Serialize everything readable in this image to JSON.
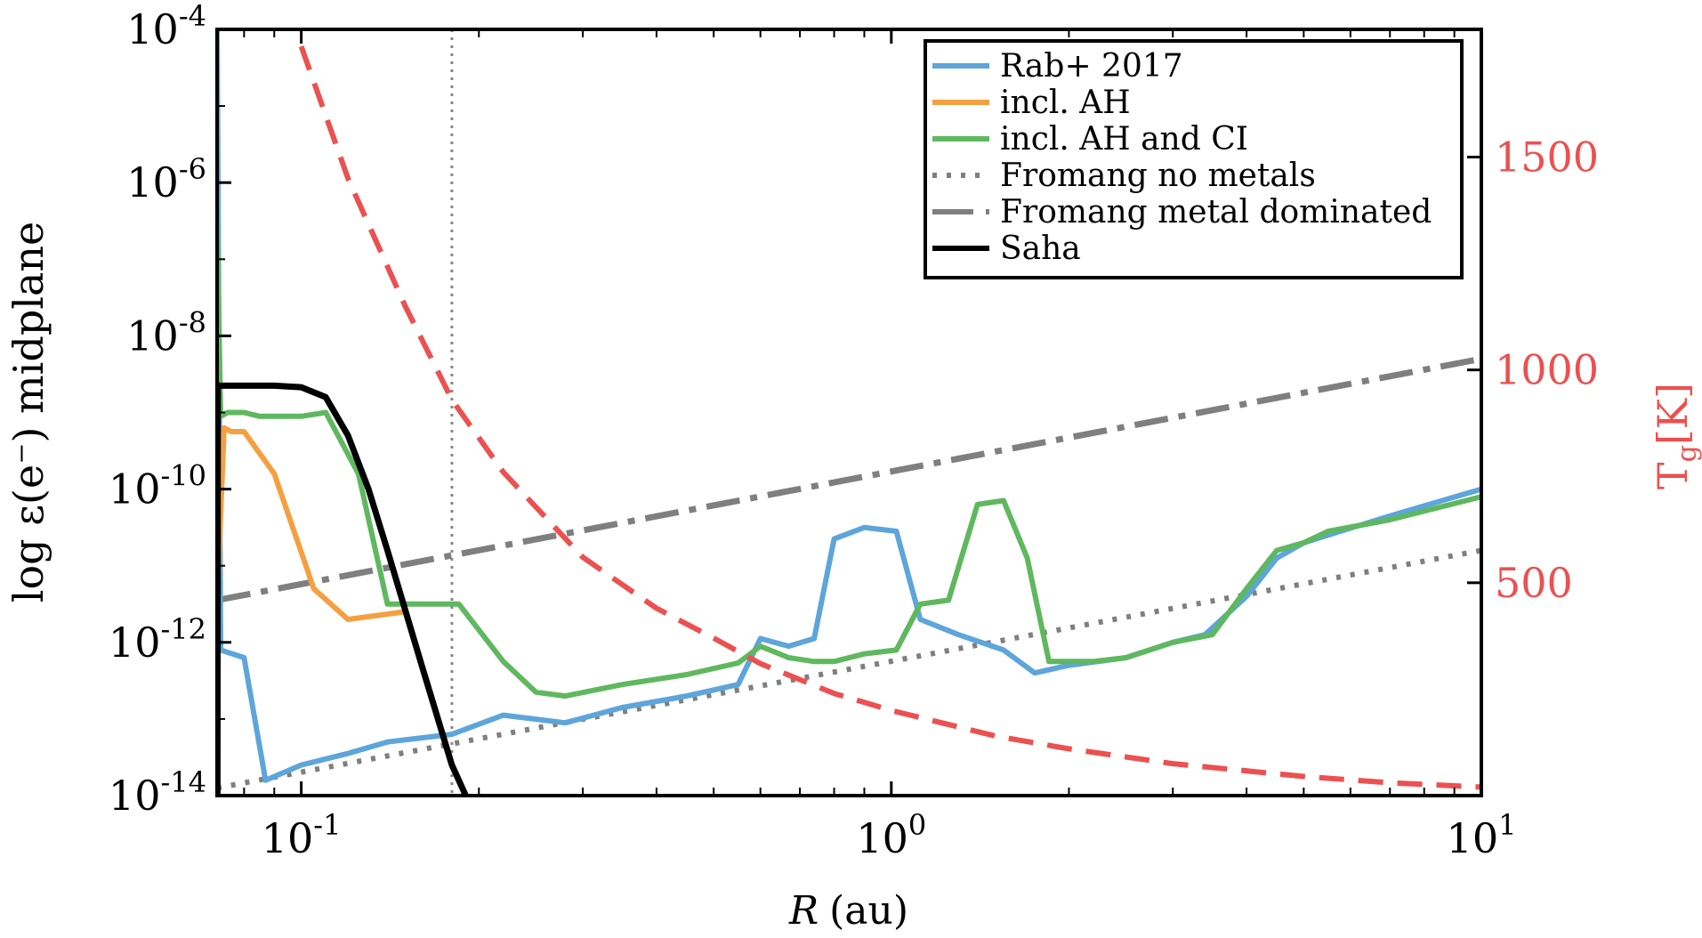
{
  "chart_data": {
    "type": "line",
    "title": "",
    "xlabel": "(au)",
    "xlabel_var": "R",
    "ylabel": "log ε(e⁻) midplane",
    "y2label": "T_g [K]",
    "y2label_main": "T",
    "y2label_sub": "g",
    "y2label_unit": "[K]",
    "xscale": "log",
    "xlim": [
      0.072,
      10
    ],
    "ylim_log10": [
      -14,
      -4
    ],
    "y2lim": [
      0,
      1800
    ],
    "x_ticks": [
      {
        "value": 0.1,
        "base": "10",
        "exp": "-1"
      },
      {
        "value": 1,
        "base": "10",
        "exp": "0"
      },
      {
        "value": 10,
        "base": "10",
        "exp": "1"
      }
    ],
    "y_ticks": [
      {
        "value": -14,
        "base": "10",
        "exp": "-14"
      },
      {
        "value": -12,
        "base": "10",
        "exp": "-12"
      },
      {
        "value": -10,
        "base": "10",
        "exp": "-10"
      },
      {
        "value": -8,
        "base": "10",
        "exp": "-8"
      },
      {
        "value": -6,
        "base": "10",
        "exp": "-6"
      },
      {
        "value": -4,
        "base": "10",
        "exp": "-4"
      }
    ],
    "y2_ticks": [
      {
        "value": 500,
        "label": "500"
      },
      {
        "value": 1000,
        "label": "1000"
      },
      {
        "value": 1500,
        "label": "1500"
      }
    ],
    "vline_x": 0.18,
    "colors": {
      "rab": "#5DA5DA",
      "ah": "#F5A040",
      "ahci": "#5FB85F",
      "fromang": "#7F7F7F",
      "saha": "#000000",
      "temp": "#EC5050",
      "vline": "#888888"
    },
    "legend": {
      "position": "top-right",
      "entries": [
        {
          "key": "rab",
          "label": "Rab+ 2017",
          "style": "solid"
        },
        {
          "key": "ah",
          "label": "incl. AH",
          "style": "solid"
        },
        {
          "key": "ahci",
          "label": "incl. AH and CI",
          "style": "solid"
        },
        {
          "key": "fromang_no",
          "label": "Fromang no metals",
          "style": "dotted"
        },
        {
          "key": "fromang_metal",
          "label": "Fromang metal dominated",
          "style": "dashdot"
        },
        {
          "key": "saha",
          "label": "Saha",
          "style": "solid"
        }
      ]
    },
    "series": [
      {
        "key": "rab",
        "name": "Rab+ 2017",
        "axis": "left",
        "log10_y": true,
        "x": [
          0.072,
          0.073,
          0.08,
          0.087,
          0.1,
          0.12,
          0.14,
          0.18,
          0.22,
          0.28,
          0.35,
          0.45,
          0.55,
          0.6,
          0.67,
          0.74,
          0.8,
          0.9,
          1.02,
          1.12,
          1.3,
          1.55,
          1.75,
          2.0,
          2.5,
          3.0,
          3.4,
          4.0,
          4.5,
          5.0,
          5.5,
          7.0,
          10.0
        ],
        "y": [
          -4,
          -12.1,
          -12.2,
          -13.8,
          -13.6,
          -13.45,
          -13.3,
          -13.2,
          -12.95,
          -13.05,
          -12.85,
          -12.7,
          -12.55,
          -11.95,
          -12.05,
          -11.95,
          -10.65,
          -10.5,
          -10.55,
          -11.7,
          -11.9,
          -12.1,
          -12.4,
          -12.3,
          -12.2,
          -12.0,
          -11.9,
          -11.4,
          -10.9,
          -10.7,
          -10.6,
          -10.35,
          -10.0
        ]
      },
      {
        "key": "ah",
        "name": "incl. AH",
        "axis": "left",
        "log10_y": true,
        "x": [
          0.072,
          0.074,
          0.076,
          0.08,
          0.09,
          0.105,
          0.12,
          0.15
        ],
        "y": [
          -11.5,
          -9.2,
          -9.25,
          -9.25,
          -9.8,
          -11.3,
          -11.7,
          -11.6
        ]
      },
      {
        "key": "ahci",
        "name": "incl. AH and CI",
        "axis": "left",
        "log10_y": true,
        "x": [
          0.072,
          0.073,
          0.075,
          0.08,
          0.085,
          0.1,
          0.11,
          0.125,
          0.14,
          0.16,
          0.185,
          0.22,
          0.25,
          0.28,
          0.35,
          0.45,
          0.55,
          0.6,
          0.67,
          0.74,
          0.8,
          0.9,
          1.02,
          1.12,
          1.25,
          1.4,
          1.55,
          1.7,
          1.85,
          2.2,
          2.5,
          3.0,
          3.5,
          4.0,
          4.5,
          5.0,
          5.5,
          7.0,
          10.0
        ],
        "y": [
          -6.5,
          -9.05,
          -9.0,
          -9.0,
          -9.05,
          -9.05,
          -9.0,
          -9.8,
          -11.5,
          -11.5,
          -11.5,
          -12.25,
          -12.65,
          -12.7,
          -12.55,
          -12.42,
          -12.27,
          -12.05,
          -12.2,
          -12.25,
          -12.25,
          -12.15,
          -12.1,
          -11.5,
          -11.45,
          -10.2,
          -10.15,
          -10.9,
          -12.25,
          -12.25,
          -12.2,
          -12.0,
          -11.9,
          -11.3,
          -10.8,
          -10.7,
          -10.55,
          -10.4,
          -10.1
        ]
      },
      {
        "key": "fromang_no",
        "name": "Fromang no metals",
        "axis": "left",
        "log10_y": true,
        "x": [
          0.072,
          10.0
        ],
        "y": [
          -13.9,
          -10.8
        ]
      },
      {
        "key": "fromang_metal",
        "name": "Fromang metal dominated",
        "axis": "left",
        "log10_y": true,
        "x": [
          0.072,
          10.0
        ],
        "y": [
          -11.45,
          -8.3
        ]
      },
      {
        "key": "saha",
        "name": "Saha",
        "axis": "left",
        "log10_y": true,
        "x": [
          0.0721,
          0.0722,
          0.075,
          0.08,
          0.09,
          0.1,
          0.11,
          0.12,
          0.13,
          0.14,
          0.16,
          0.18,
          0.19
        ],
        "y": [
          -14,
          -8.65,
          -8.65,
          -8.65,
          -8.65,
          -8.67,
          -8.8,
          -9.3,
          -10.0,
          -10.8,
          -12.3,
          -13.6,
          -14.0
        ]
      },
      {
        "key": "temp",
        "name": "Tg",
        "axis": "right",
        "log10_y": false,
        "x": [
          0.1,
          0.12,
          0.15,
          0.18,
          0.22,
          0.3,
          0.4,
          0.5,
          0.6,
          0.8,
          1.0,
          1.5,
          2.0,
          3.0,
          5.0,
          7.0,
          10.0
        ],
        "y": [
          1760,
          1450,
          1150,
          930,
          760,
          560,
          440,
          370,
          310,
          240,
          200,
          140,
          110,
          75,
          45,
          30,
          20
        ]
      }
    ]
  }
}
